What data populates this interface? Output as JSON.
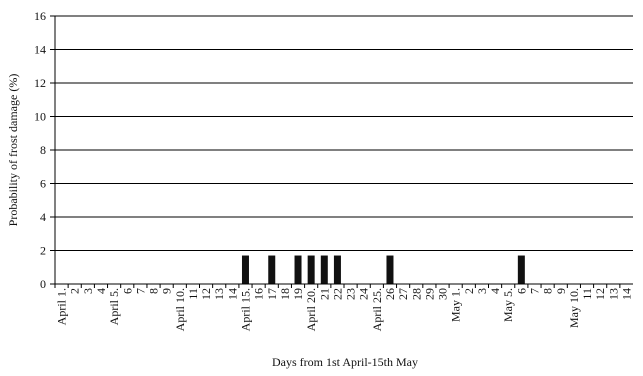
{
  "chart_data": {
    "type": "bar",
    "title": "",
    "xlabel": "Days from 1st April-15th May",
    "ylabel": "Probability of frost damage (%)",
    "ylim": [
      0,
      16
    ],
    "yticks": [
      0,
      2,
      4,
      6,
      8,
      10,
      12,
      14,
      16
    ],
    "grid": true,
    "legend": "none",
    "bar_color": "#111111",
    "categories": [
      "April 1.",
      "2",
      "3",
      "4",
      "April 5.",
      "6",
      "7",
      "8",
      "9",
      "April 10.",
      "11",
      "12",
      "13",
      "14",
      "April 15.",
      "16",
      "17",
      "18",
      "19",
      "April 20.",
      "21",
      "22",
      "23",
      "24",
      "April 25.",
      "26",
      "27",
      "28",
      "29",
      "30",
      "May 1.",
      "2",
      "3",
      "4",
      "May 5.",
      "6",
      "7",
      "8",
      "9",
      "May 10.",
      "11",
      "12",
      "13",
      "14"
    ],
    "values": [
      0,
      0,
      0,
      0,
      0,
      0,
      0,
      0,
      0,
      0,
      0,
      0,
      0,
      0,
      1.7,
      0,
      1.7,
      0,
      1.7,
      1.7,
      1.7,
      1.7,
      0,
      0,
      0,
      1.7,
      0,
      0,
      0,
      0,
      0,
      0,
      0,
      0,
      0,
      1.7,
      0,
      0,
      0,
      0,
      0,
      0,
      0,
      0
    ]
  }
}
